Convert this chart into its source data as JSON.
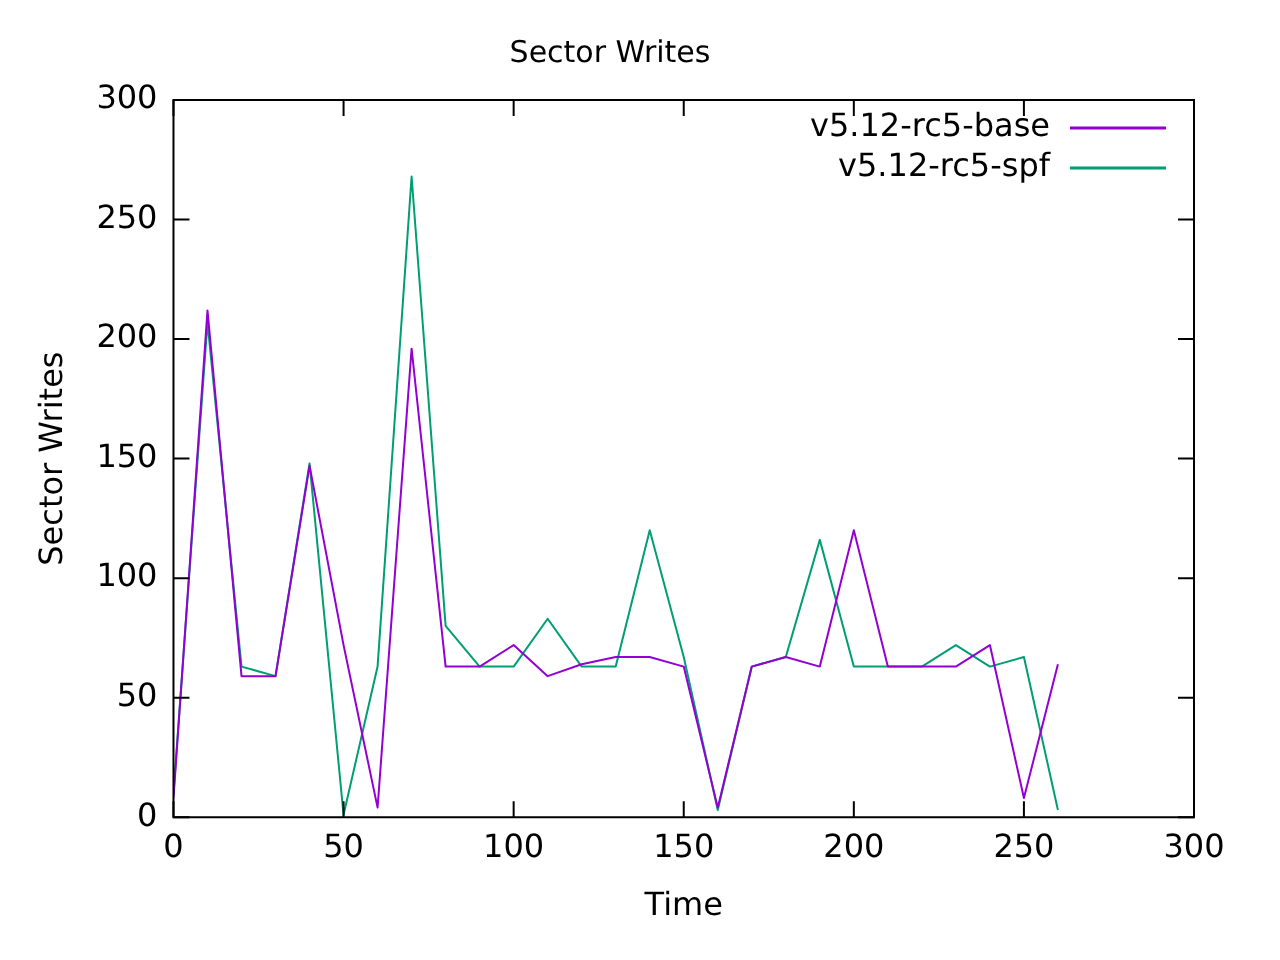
{
  "chart_data": {
    "type": "line",
    "title": "Sector Writes",
    "xlabel": "Time",
    "ylabel": "Sector Writes",
    "x": [
      0,
      10,
      20,
      30,
      40,
      50,
      60,
      70,
      80,
      90,
      100,
      110,
      120,
      130,
      140,
      150,
      160,
      170,
      180,
      190,
      200,
      210,
      220,
      230,
      240,
      250,
      260
    ],
    "series": [
      {
        "name": "v5.12-rc5-base",
        "color": "#9400d3",
        "values": [
          8,
          212,
          59,
          59,
          147,
          72,
          4,
          196,
          63,
          63,
          72,
          59,
          64,
          67,
          67,
          63,
          4,
          63,
          67,
          63,
          120,
          63,
          63,
          63,
          72,
          8,
          64
        ]
      },
      {
        "name": "v5.12-rc5-spf",
        "color": "#009e73",
        "values": [
          10,
          207,
          63,
          59,
          148,
          1,
          63,
          268,
          80,
          63,
          63,
          83,
          63,
          63,
          120,
          67,
          3,
          63,
          67,
          116,
          63,
          63,
          63,
          72,
          63,
          67,
          3
        ]
      }
    ],
    "xlim": [
      0,
      300
    ],
    "xticks": [
      0,
      50,
      100,
      150,
      200,
      250,
      300
    ],
    "ylim": [
      0,
      300
    ],
    "yticks": [
      0,
      50,
      100,
      150,
      200,
      250,
      300
    ],
    "grid": false,
    "legend": "top right",
    "marker": "none",
    "line_style": "solid"
  }
}
